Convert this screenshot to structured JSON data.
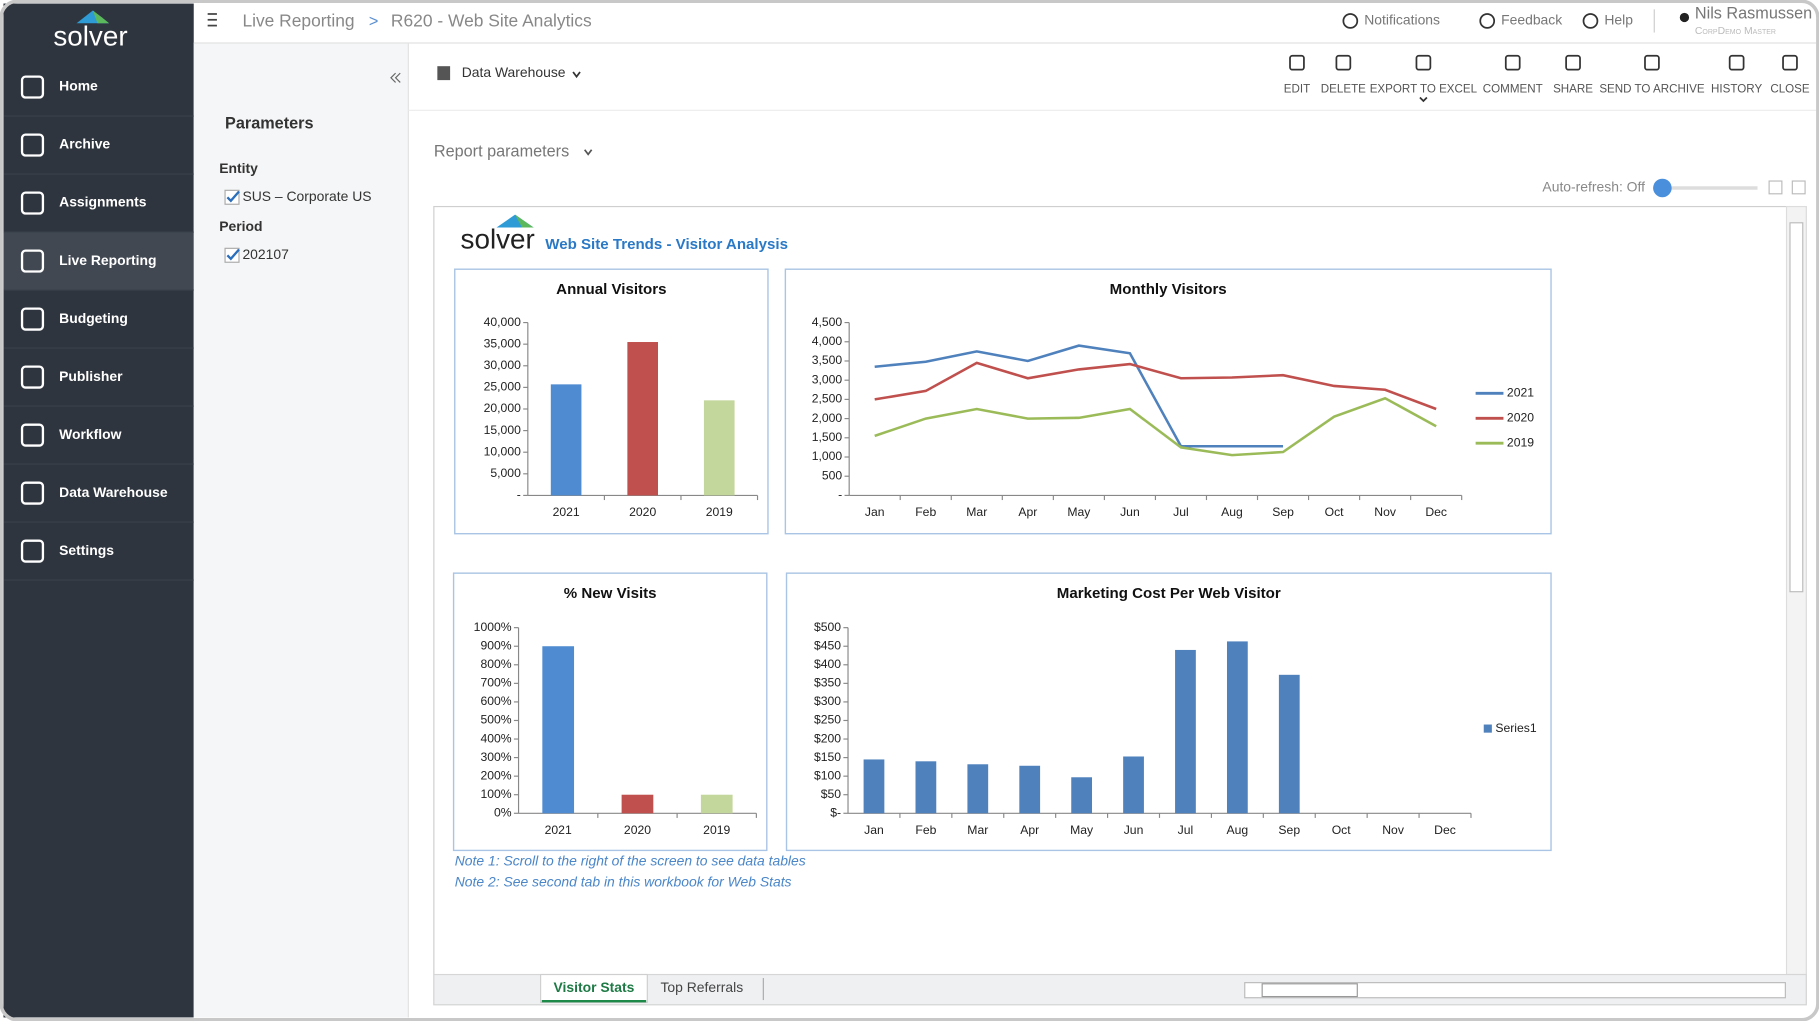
{
  "app": {
    "logo": "solver",
    "nav": [
      "Home",
      "Archive",
      "Assignments",
      "Live Reporting",
      "Budgeting",
      "Publisher",
      "Workflow",
      "Data Warehouse",
      "Settings"
    ],
    "breadcrumb": [
      "Live Reporting",
      ">",
      "R620 - Web Site Analytics"
    ],
    "header_menu": [
      "Notifications",
      "Feedback",
      "Help"
    ],
    "user": {
      "name": "Nils Rasmussen",
      "role": "CorpDemo Master"
    },
    "toolbar": [
      "EDIT",
      "DELETE",
      "EXPORT TO EXCEL",
      "COMMENT",
      "SHARE",
      "SEND TO ARCHIVE",
      "HISTORY",
      "CLOSE"
    ],
    "source": "Data Warehouse",
    "report_parameters": "Report parameters",
    "auto_refresh": "Auto-refresh: Off"
  },
  "parameters": {
    "title": "Parameters",
    "entity_label": "Entity",
    "entity": "SUS – Corporate US",
    "period_label": "Period",
    "period": "202107"
  },
  "report": {
    "logo": "solver",
    "title": "Web Site Trends - Visitor Analysis",
    "notes": [
      "Note 1: Scroll to the right of the screen to see data tables",
      "Note 2: See second tab in this workbook for Web Stats"
    ],
    "tabs": [
      "Visitor Stats",
      "Top Referrals"
    ]
  },
  "chart_data": [
    {
      "type": "bar",
      "title": "Annual Visitors",
      "categories": [
        "2021",
        "2020",
        "2019"
      ],
      "values": [
        25700,
        35500,
        22000
      ],
      "colors": [
        "#4f8bd0",
        "#c0504d",
        "#c3d69b"
      ],
      "ylim": [
        0,
        40000
      ],
      "yticks": [
        {
          "value": 0,
          "label": "-"
        },
        {
          "value": 5000,
          "label": "5,000"
        },
        {
          "value": 10000,
          "label": "10,000"
        },
        {
          "value": 15000,
          "label": "15,000"
        },
        {
          "value": 20000,
          "label": "20,000"
        },
        {
          "value": 25000,
          "label": "25,000"
        },
        {
          "value": 30000,
          "label": "30,000"
        },
        {
          "value": 35000,
          "label": "35,000"
        },
        {
          "value": 40000,
          "label": "40,000"
        }
      ],
      "grid": false
    },
    {
      "type": "line",
      "title": "Monthly Visitors",
      "categories": [
        "Jan",
        "Feb",
        "Mar",
        "Apr",
        "May",
        "Jun",
        "Jul",
        "Aug",
        "Sep",
        "Oct",
        "Nov",
        "Dec"
      ],
      "series": [
        {
          "name": "2021",
          "color": "#4f81bd",
          "values": [
            3350,
            3480,
            3750,
            3500,
            3900,
            3700,
            1280,
            1280,
            1280,
            null,
            null,
            null
          ]
        },
        {
          "name": "2020",
          "color": "#c0504d",
          "values": [
            2500,
            2720,
            3450,
            3050,
            3280,
            3420,
            3050,
            3070,
            3130,
            2850,
            2750,
            2250
          ]
        },
        {
          "name": "2019",
          "color": "#9bbb59",
          "values": [
            1550,
            2000,
            2250,
            2000,
            2020,
            2250,
            1250,
            1050,
            1130,
            2050,
            2530,
            1800
          ]
        }
      ],
      "ylim": [
        0,
        4500
      ],
      "yticks": [
        {
          "value": 0,
          "label": "-"
        },
        500,
        {
          "value": 1000,
          "label": "1,000"
        },
        {
          "value": 1500,
          "label": "1,500"
        },
        {
          "value": 2000,
          "label": "2,000"
        },
        {
          "value": 2500,
          "label": "2,500"
        },
        {
          "value": 3000,
          "label": "3,000"
        },
        {
          "value": 3500,
          "label": "3,500"
        },
        {
          "value": 4000,
          "label": "4,000"
        },
        {
          "value": 4500,
          "label": "4,500"
        }
      ],
      "grid": false,
      "legend": "right"
    },
    {
      "type": "bar",
      "title": "% New Visits",
      "categories": [
        "2021",
        "2020",
        "2019"
      ],
      "values": [
        900,
        100,
        100
      ],
      "colors": [
        "#4f8bd0",
        "#c0504d",
        "#c3d69b"
      ],
      "ylim": [
        0,
        1000
      ],
      "yticks": [
        {
          "value": 0,
          "label": "0%"
        },
        {
          "value": 100,
          "label": "100%"
        },
        {
          "value": 200,
          "label": "200%"
        },
        {
          "value": 300,
          "label": "300%"
        },
        {
          "value": 400,
          "label": "400%"
        },
        {
          "value": 500,
          "label": "500%"
        },
        {
          "value": 600,
          "label": "600%"
        },
        {
          "value": 700,
          "label": "700%"
        },
        {
          "value": 800,
          "label": "800%"
        },
        {
          "value": 900,
          "label": "900%"
        },
        {
          "value": 1000,
          "label": "1000%"
        }
      ],
      "grid": false
    },
    {
      "type": "bar",
      "title": "Marketing Cost Per Web Visitor",
      "categories": [
        "Jan",
        "Feb",
        "Mar",
        "Apr",
        "May",
        "Jun",
        "Jul",
        "Aug",
        "Sep",
        "Oct",
        "Nov",
        "Dec"
      ],
      "series": [
        {
          "name": "Series1",
          "color": "#4f81bd",
          "values": [
            145,
            140,
            132,
            128,
            97,
            153,
            440,
            463,
            373,
            null,
            null,
            null
          ]
        }
      ],
      "ylim": [
        0,
        500
      ],
      "yticks": [
        {
          "value": 0,
          "label": "$-"
        },
        {
          "value": 50,
          "label": "$50"
        },
        {
          "value": 100,
          "label": "$100"
        },
        {
          "value": 150,
          "label": "$150"
        },
        {
          "value": 200,
          "label": "$200"
        },
        {
          "value": 250,
          "label": "$250"
        },
        {
          "value": 300,
          "label": "$300"
        },
        {
          "value": 350,
          "label": "$350"
        },
        {
          "value": 400,
          "label": "$400"
        },
        {
          "value": 450,
          "label": "$450"
        },
        {
          "value": 500,
          "label": "$500"
        }
      ],
      "grid": false,
      "legend": "right"
    }
  ]
}
